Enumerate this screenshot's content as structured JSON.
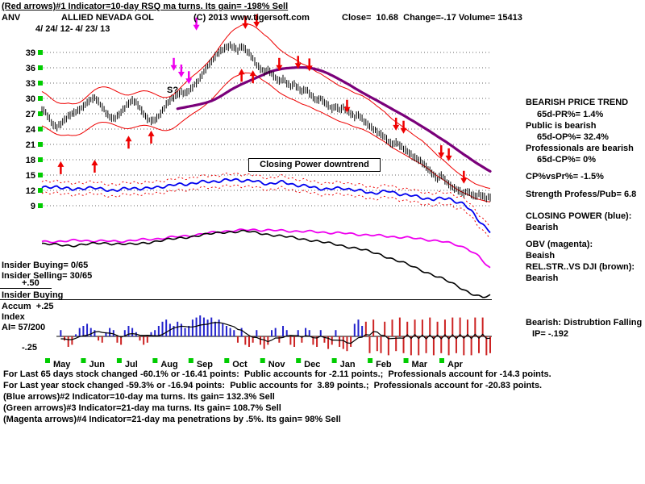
{
  "header": {
    "line1": "(Red arrows)#1 Indicator=10-day RSQ ma turns. Its gain= -198% Sell",
    "ticker": "ANV",
    "company": "ALLIED NEVADA GOL",
    "copyright": "(C) 2013 www.tigersoft.com",
    "quote": "Close=  10.68  Change=-.17 Volume= 15413",
    "date_range": "4/ 24/ 12- 4/ 23/ 13"
  },
  "left_labels": {
    "insider_buying": "Insider Buying= 0/65",
    "insider_selling": "Insider Selling= 30/65",
    "plus_50": "+.50",
    "insider_buying2": "Insider Buying",
    "accum": "Accum  +.25",
    "index": "Index",
    "ai": "AI= 57/200",
    "minus_25": "-.25"
  },
  "annotations": {
    "s_mark": "S?",
    "cp_box": "Closing Power downtrend"
  },
  "right_panel": {
    "r1": "BEARISH PRICE TREND",
    "r2": "65d-PR%= 1.4%",
    "r3": "Public is bearish",
    "r4": "65d-OP%= 32.4%",
    "r5": "Professionals are bearish",
    "r6": "65d-CP%= 0%",
    "r7": "CP%vsPr%= -1.5%",
    "r8": "Strength Profess/Pub= 6.8",
    "r9": "CLOSING POWER (blue):",
    "r10": "Bearish",
    "r11": "OBV (magenta):",
    "r12": "Beaish",
    "r13": "REL.STR..VS DJI (brown):",
    "r14": "Bearish",
    "r15": "Bearish: Distrubtion Falling",
    "r16": "IP= -.192"
  },
  "footer": {
    "line1": "For Last 65 days stock changed -60.1% or -16.41 points:  Public accounts for -2.11 points.;  Professionals account for -14.3 points.",
    "line2": "For Last year stock changed -59.3% or -16.94 points:  Public accounts for  3.89 points.;  Professionals account for -20.83 points.",
    "line3": "(Blue arrows)#2 Indicator=10-day ma turns. Its gain= 132.3% Sell",
    "line4": "(Green arrows)#3 Indicator=21-day ma turns. Its gain= 108.7% Sell",
    "line5": "(Magenta arrows)#4 Indicator=21-day ma penetrations by .5%. Its gain= 98% Sell"
  },
  "chart_data": {
    "type": "line",
    "title": "ANV Allied Nevada Gold daily price with TigerSoft indicators, 4/24/12 - 4/23/13",
    "price_axis": {
      "ticks": [
        39,
        36,
        33,
        30,
        27,
        24,
        21,
        18,
        15,
        12,
        9
      ],
      "min": 9,
      "max": 39
    },
    "months": [
      "May",
      "Jun",
      "Jul",
      "Aug",
      "Sep",
      "Oct",
      "Nov",
      "Dec",
      "Jan",
      "Feb",
      "Mar",
      "Apr"
    ],
    "close": [
      28.0,
      27.2,
      26.0,
      24.8,
      24.4,
      25.0,
      25.8,
      26.5,
      27.0,
      27.4,
      27.8,
      28.4,
      29.2,
      29.8,
      30.1,
      29.4,
      28.3,
      27.2,
      26.4,
      26.0,
      26.5,
      27.3,
      28.2,
      29.0,
      29.6,
      29.2,
      28.2,
      27.0,
      26.0,
      25.6,
      25.8,
      26.5,
      27.6,
      28.8,
      29.6,
      30.2,
      30.8,
      31.2,
      31.0,
      31.5,
      32.2,
      33.0,
      34.0,
      35.2,
      36.3,
      37.2,
      38.2,
      39.0,
      39.6,
      40.0,
      40.3,
      40.0,
      39.4,
      40.2,
      39.6,
      38.8,
      37.8,
      36.6,
      35.8,
      35.2,
      35.6,
      34.8,
      34.0,
      33.4,
      33.8,
      33.0,
      32.4,
      32.8,
      32.0,
      31.4,
      31.8,
      31.0,
      30.2,
      29.6,
      30.0,
      29.2,
      28.6,
      28.0,
      28.4,
      27.8,
      28.2,
      27.6,
      27.0,
      26.4,
      26.8,
      26.0,
      25.2,
      24.6,
      24.0,
      23.4,
      23.0,
      22.4,
      21.6,
      21.0,
      21.4,
      20.8,
      20.2,
      19.6,
      19.0,
      18.4,
      18.0,
      17.4,
      16.6,
      15.8,
      15.0,
      14.2,
      15.0,
      14.0,
      13.2,
      12.6,
      12.2,
      11.8,
      11.4,
      11.8,
      11.2,
      10.8,
      11.2,
      10.9,
      10.5,
      10.68
    ],
    "band_pct": 0.12,
    "ma_window": 30,
    "closing_power": {
      "anchors": [
        [
          0,
          12.4
        ],
        [
          4,
          12.8
        ],
        [
          8,
          12.1
        ],
        [
          12,
          12.6
        ],
        [
          16,
          12.2
        ],
        [
          20,
          12.0
        ],
        [
          24,
          12.5
        ],
        [
          28,
          12.3
        ],
        [
          32,
          12.8
        ],
        [
          36,
          13.1
        ],
        [
          40,
          13.4
        ],
        [
          44,
          13.7
        ],
        [
          48,
          13.9
        ],
        [
          52,
          14.1
        ],
        [
          56,
          13.8
        ],
        [
          60,
          13.3
        ],
        [
          64,
          13.6
        ],
        [
          68,
          13.0
        ],
        [
          72,
          12.6
        ],
        [
          76,
          12.2
        ],
        [
          80,
          12.5
        ],
        [
          84,
          11.9
        ],
        [
          88,
          11.5
        ],
        [
          92,
          11.8
        ],
        [
          96,
          11.2
        ],
        [
          100,
          10.7
        ],
        [
          104,
          10.2
        ],
        [
          108,
          10.5
        ],
        [
          110,
          9.8
        ],
        [
          112,
          9.2
        ],
        [
          114,
          8.0
        ],
        [
          116,
          6.2
        ],
        [
          118,
          4.5
        ],
        [
          119,
          3.8
        ]
      ]
    },
    "obv": {
      "anchors": [
        [
          0,
          1.9
        ],
        [
          10,
          2.2
        ],
        [
          20,
          2.0
        ],
        [
          30,
          2.5
        ],
        [
          40,
          3.2
        ],
        [
          48,
          4.0
        ],
        [
          56,
          4.3
        ],
        [
          64,
          4.1
        ],
        [
          72,
          3.9
        ],
        [
          80,
          3.6
        ],
        [
          88,
          3.2
        ],
        [
          96,
          2.8
        ],
        [
          102,
          2.4
        ],
        [
          106,
          2.0
        ],
        [
          110,
          1.4
        ],
        [
          113,
          0.6
        ],
        [
          116,
          -1.0
        ],
        [
          118,
          -2.6
        ],
        [
          119,
          -3.2
        ]
      ]
    },
    "rel_str": {
      "anchors": [
        [
          0,
          1.5
        ],
        [
          8,
          1.2
        ],
        [
          16,
          1.7
        ],
        [
          24,
          1.4
        ],
        [
          32,
          2.2
        ],
        [
          40,
          3.0
        ],
        [
          48,
          3.8
        ],
        [
          54,
          4.0
        ],
        [
          60,
          3.4
        ],
        [
          66,
          2.8
        ],
        [
          72,
          2.2
        ],
        [
          78,
          1.4
        ],
        [
          84,
          0.6
        ],
        [
          90,
          -0.6
        ],
        [
          96,
          -2.2
        ],
        [
          102,
          -4.0
        ],
        [
          106,
          -5.2
        ],
        [
          110,
          -6.6
        ],
        [
          114,
          -8.2
        ],
        [
          117,
          -9.0
        ],
        [
          119,
          -8.6
        ]
      ]
    },
    "accum_index": {
      "values": [
        [
          -0.2,
          "r"
        ],
        [
          -0.4,
          "r"
        ],
        [
          -0.5,
          "r"
        ],
        [
          -0.3,
          "r"
        ],
        [
          0.2,
          "b"
        ],
        [
          0.3,
          "b"
        ],
        [
          -0.2,
          "r"
        ],
        [
          -0.5,
          "r"
        ],
        [
          -0.4,
          "r"
        ],
        [
          0.1,
          "b"
        ],
        [
          0.4,
          "b"
        ],
        [
          0.5,
          "b"
        ],
        [
          0.6,
          "b"
        ],
        [
          0.4,
          "b"
        ],
        [
          0.3,
          "b"
        ],
        [
          -0.2,
          "r"
        ],
        [
          -0.3,
          "r"
        ],
        [
          0.2,
          "b"
        ],
        [
          0.4,
          "b"
        ],
        [
          0.3,
          "b"
        ],
        [
          -0.3,
          "r"
        ],
        [
          -0.4,
          "r"
        ],
        [
          0.3,
          "b"
        ],
        [
          0.5,
          "b"
        ],
        [
          0.4,
          "b"
        ],
        [
          0.2,
          "b"
        ],
        [
          -0.2,
          "r"
        ],
        [
          -0.4,
          "r"
        ],
        [
          -0.3,
          "r"
        ],
        [
          0.2,
          "b"
        ],
        [
          0.3,
          "b"
        ],
        [
          0.5,
          "b"
        ],
        [
          0.7,
          "b"
        ],
        [
          0.8,
          "b"
        ],
        [
          0.6,
          "b"
        ],
        [
          0.5,
          "b"
        ],
        [
          0.7,
          "b"
        ],
        [
          0.6,
          "b"
        ],
        [
          0.4,
          "b"
        ],
        [
          0.5,
          "b"
        ],
        [
          0.8,
          "b"
        ],
        [
          0.9,
          "b"
        ],
        [
          1.0,
          "b"
        ],
        [
          0.9,
          "b"
        ],
        [
          0.8,
          "b"
        ],
        [
          0.9,
          "b"
        ],
        [
          0.7,
          "b"
        ],
        [
          0.8,
          "b"
        ],
        [
          0.6,
          "b"
        ],
        [
          0.5,
          "b"
        ],
        [
          0.4,
          "b"
        ],
        [
          0.3,
          "b"
        ],
        [
          -0.3,
          "r"
        ],
        [
          0.4,
          "b"
        ],
        [
          -0.4,
          "r"
        ],
        [
          -0.5,
          "r"
        ],
        [
          -0.3,
          "r"
        ],
        [
          0.3,
          "b"
        ],
        [
          -0.4,
          "r"
        ],
        [
          -0.6,
          "r"
        ],
        [
          -0.4,
          "r"
        ],
        [
          0.3,
          "b"
        ],
        [
          0.4,
          "b"
        ],
        [
          -0.3,
          "r"
        ],
        [
          0.5,
          "b"
        ],
        [
          0.3,
          "b"
        ],
        [
          -0.4,
          "r"
        ],
        [
          -0.5,
          "r"
        ],
        [
          0.3,
          "b"
        ],
        [
          -0.3,
          "r"
        ],
        [
          0.4,
          "b"
        ],
        [
          0.3,
          "b"
        ],
        [
          -0.4,
          "r"
        ],
        [
          -0.5,
          "r"
        ],
        [
          0.3,
          "b"
        ],
        [
          -0.3,
          "r"
        ],
        [
          -0.6,
          "r"
        ],
        [
          -0.4,
          "r"
        ],
        [
          0.3,
          "b"
        ],
        [
          -0.5,
          "r"
        ],
        [
          -0.6,
          "r"
        ],
        [
          -0.7,
          "r"
        ],
        [
          -0.5,
          "r"
        ],
        [
          0.6,
          "b"
        ],
        [
          0.8,
          "b"
        ],
        [
          0.5,
          "b"
        ],
        [
          0.7,
          "r"
        ],
        [
          -0.8,
          "r"
        ],
        [
          0.8,
          "r"
        ],
        [
          -0.7,
          "r"
        ],
        [
          -0.8,
          "r"
        ],
        [
          0.7,
          "r"
        ],
        [
          -0.9,
          "r"
        ],
        [
          0.8,
          "r"
        ],
        [
          -0.7,
          "r"
        ],
        [
          0.9,
          "r"
        ],
        [
          -0.8,
          "r"
        ],
        [
          0.7,
          "r"
        ],
        [
          -0.9,
          "r"
        ],
        [
          0.8,
          "r"
        ],
        [
          -0.9,
          "r"
        ],
        [
          0.8,
          "r"
        ],
        [
          -0.8,
          "r"
        ],
        [
          0.9,
          "r"
        ],
        [
          -0.9,
          "r"
        ],
        [
          0.7,
          "r"
        ],
        [
          -0.8,
          "r"
        ],
        [
          0.8,
          "r"
        ],
        [
          -0.9,
          "r"
        ],
        [
          0.9,
          "r"
        ],
        [
          -0.8,
          "r"
        ],
        [
          0.9,
          "r"
        ],
        [
          -0.9,
          "r"
        ],
        [
          0.8,
          "r"
        ],
        [
          -0.9,
          "r"
        ],
        [
          0.9,
          "r"
        ],
        [
          -0.8,
          "r"
        ],
        [
          0.9,
          "r"
        ],
        [
          -0.9,
          "r"
        ],
        [
          -0.8,
          "r"
        ]
      ]
    },
    "arrows": {
      "red_up": [
        [
          5,
          17.7
        ],
        [
          14,
          18.0
        ],
        [
          23,
          22.7
        ],
        [
          29,
          23.7
        ],
        [
          53,
          35.8
        ],
        [
          56,
          35.5
        ]
      ],
      "red_down": [
        [
          54,
          43.6
        ],
        [
          57,
          43.9
        ],
        [
          63,
          35.4
        ],
        [
          68,
          35.8
        ],
        [
          71,
          35.3
        ],
        [
          81,
          27.2
        ],
        [
          94,
          23.7
        ],
        [
          96,
          23.1
        ],
        [
          106,
          18.3
        ],
        [
          108,
          17.7
        ],
        [
          112,
          13.3
        ]
      ],
      "magenta_down": [
        [
          35,
          35.4
        ],
        [
          37,
          34.1
        ],
        [
          39,
          32.8
        ],
        [
          41,
          43.3
        ]
      ]
    },
    "colors": {
      "tick_green": "#00CC00",
      "band_red": "#EE0000",
      "ma_purple": "#7A007A",
      "cp_blue": "#0000EE",
      "obv_magenta": "#EE00EE",
      "rel_black": "#000000",
      "accum_blue": "#2222CC",
      "accum_red": "#CC2222",
      "arrow_red": "#EE0000",
      "arrow_magenta": "#EE00EE",
      "grid_gray": "#666666"
    }
  }
}
